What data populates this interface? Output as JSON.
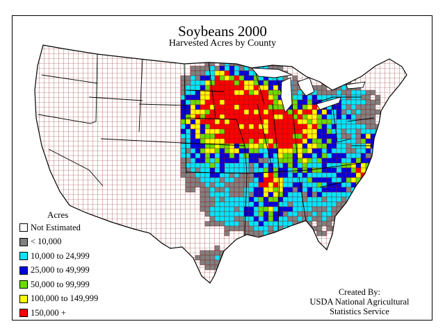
{
  "title": "Soybeans 2000",
  "subtitle": "Harvested Acres by County",
  "legend": {
    "title": "Acres",
    "items": [
      {
        "label": "Not Estimated",
        "color": "#ffffff"
      },
      {
        "label": "< 10,000",
        "color": "#808080"
      },
      {
        "label": "10,000 to 24,999",
        "color": "#00e6ff"
      },
      {
        "label": "25,000 to 49,999",
        "color": "#0000dd"
      },
      {
        "label": "50,000 to 99,999",
        "color": "#66dd00"
      },
      {
        "label": "100,000 to 149,999",
        "color": "#ffff00"
      },
      {
        "label": "150,000 +",
        "color": "#ff0000"
      }
    ]
  },
  "credit": {
    "line1": "Created By:",
    "line2": "USDA National Agricultural",
    "line3": "Statistics Service"
  },
  "colors": {
    "county_border": "#8b1a1a",
    "state_border": "#000000"
  }
}
